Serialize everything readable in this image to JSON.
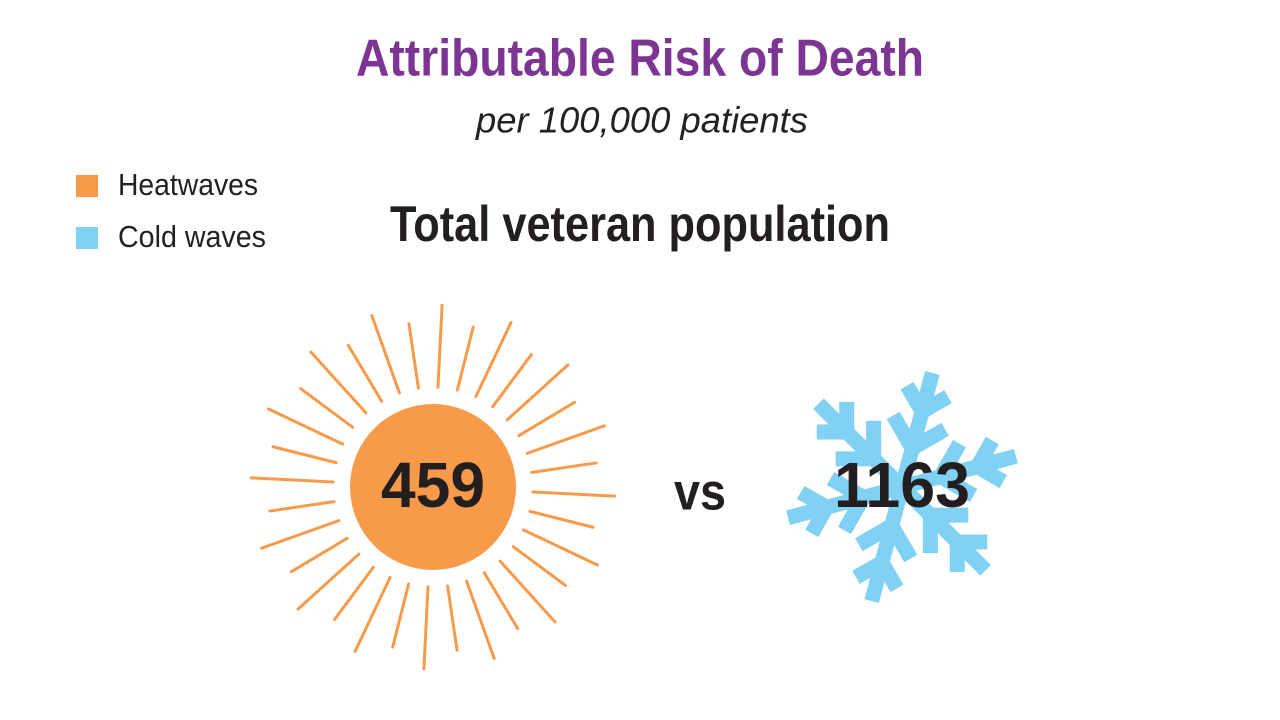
{
  "header": {
    "title": "Attributable Risk of Death",
    "subtitle": "per 100,000 patients"
  },
  "legend": [
    {
      "label": "Heatwaves",
      "color": "#f79a4a"
    },
    {
      "label": "Cold waves",
      "color": "#81d1f5"
    }
  ],
  "heading": "Total veteran population",
  "comparison": {
    "heat": "459",
    "separator": "vs",
    "cold": "1163"
  }
}
